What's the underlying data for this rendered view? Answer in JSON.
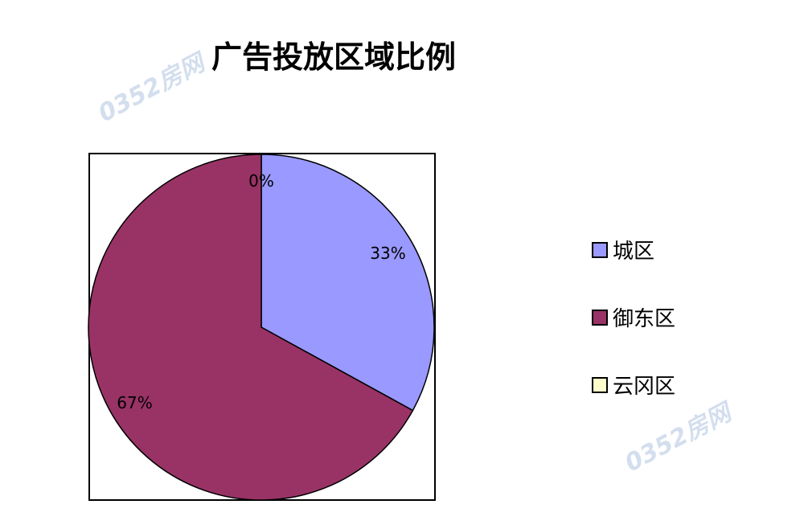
{
  "watermark": "0352房网",
  "chart_data": {
    "type": "pie",
    "title": "广告投放区域比例",
    "categories": [
      "城区",
      "御东区",
      "云冈区"
    ],
    "values": [
      33,
      67,
      0
    ],
    "labels": [
      "33%",
      "67%",
      "0%"
    ],
    "colors": [
      "#9999FF",
      "#993366",
      "#FFFFCC"
    ],
    "legend_position": "right"
  }
}
